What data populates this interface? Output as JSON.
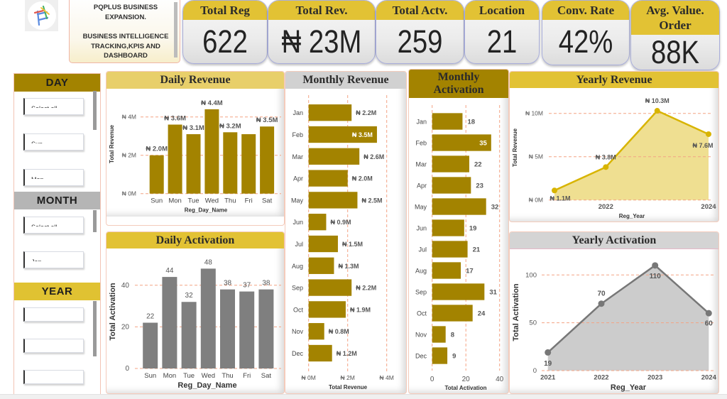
{
  "logo": {
    "icon": "pqplus-logo-icon"
  },
  "title_card": {
    "lines": [
      "PQPLUS BUSINESS",
      "EXPANSION.",
      "",
      "BUSINESS INTELLIGENCE",
      "TRACKING,KPIS AND",
      "DASHBOARD"
    ]
  },
  "kpis": [
    {
      "label": "Total Reg",
      "value": "622"
    },
    {
      "label": "Total Rev.",
      "value": "₦ 23M"
    },
    {
      "label": "Total Actv.",
      "value": "259"
    },
    {
      "label": "Location",
      "value": "21"
    },
    {
      "label": "Conv. Rate",
      "value": "42%"
    },
    {
      "label": "Avg. Value. Order",
      "value": "88K"
    }
  ],
  "slicers": {
    "day": {
      "title": "DAY",
      "items": [
        "Select all",
        "Sun",
        "Mon"
      ]
    },
    "month": {
      "title": "MONTH",
      "items": [
        "Select all",
        "Jan"
      ]
    },
    "year": {
      "title": "YEAR"
    }
  },
  "colors": {
    "accent_gold": "#E2C234",
    "light_gold": "#E8CF6A",
    "dark_gold": "#A38300",
    "header_gray": "#D1D1D1",
    "bar_gray": "#7F7F7F",
    "gridline": "#F4A383"
  },
  "chart_data": [
    {
      "id": "daily_revenue",
      "type": "bar",
      "orientation": "vertical",
      "title": "Daily Revenue",
      "categories": [
        "Sun",
        "Mon",
        "Tue",
        "Wed",
        "Thu",
        "Fri",
        "Sat"
      ],
      "values": [
        2.0,
        3.6,
        3.1,
        4.4,
        3.2,
        3.1,
        3.5
      ],
      "value_unit": "₦ millions",
      "data_labels": [
        "₦ 2.0M",
        "₦ 3.6M",
        "₦ 3.1M",
        "₦ 4.4M",
        "₦ 3.2M",
        null,
        "₦ 3.5M"
      ],
      "xlabel": "Reg_Day_Name",
      "ylabel": "Total Revenue",
      "yticks": [
        0,
        2,
        4
      ],
      "ytick_labels": [
        "₦ 0M",
        "₦ 2M",
        "₦ 4M"
      ],
      "ylim": [
        0,
        4.8
      ],
      "grid": true
    },
    {
      "id": "daily_activation",
      "type": "bar",
      "orientation": "vertical",
      "title": "Daily Activation",
      "categories": [
        "Sun",
        "Mon",
        "Tue",
        "Wed",
        "Thu",
        "Fri",
        "Sat"
      ],
      "values": [
        22,
        44,
        32,
        48,
        38,
        37,
        38
      ],
      "data_labels": [
        "22",
        "44",
        "32",
        "48",
        "38",
        "37",
        "38"
      ],
      "xlabel": "Reg_Day_Name",
      "ylabel": "Total Activation",
      "yticks": [
        0,
        20,
        40
      ],
      "ytick_labels": [
        "0",
        "20",
        "40"
      ],
      "ylim": [
        0,
        52
      ],
      "grid": true
    },
    {
      "id": "monthly_revenue",
      "type": "bar",
      "orientation": "horizontal",
      "title": "Monthly Revenue",
      "categories": [
        "Jan",
        "Feb",
        "Mar",
        "Apr",
        "May",
        "Jun",
        "Jul",
        "Aug",
        "Sep",
        "Oct",
        "Nov",
        "Dec"
      ],
      "values": [
        2.2,
        3.5,
        2.6,
        2.0,
        2.5,
        0.9,
        1.5,
        1.3,
        2.2,
        1.9,
        0.8,
        1.2
      ],
      "value_unit": "₦ millions",
      "data_labels": [
        "₦ 2.2M",
        "₦ 3.5M",
        "₦ 2.6M",
        "₦ 2.0M",
        "₦ 2.5M",
        "₦ 0.9M",
        "₦ 1.5M",
        "₦ 1.3M",
        "₦ 2.2M",
        "₦ 1.9M",
        "₦ 0.8M",
        "₦ 1.2M"
      ],
      "xlabel": "Total Revenue",
      "ylabel": "",
      "xticks": [
        0,
        2,
        4
      ],
      "xtick_labels": [
        "₦ 0M",
        "₦ 2M",
        "₦ 4M"
      ],
      "xlim": [
        0,
        4
      ],
      "grid": true
    },
    {
      "id": "monthly_activation",
      "type": "bar",
      "orientation": "horizontal",
      "title": "Monthly Activation",
      "categories": [
        "Jan",
        "Feb",
        "Mar",
        "Apr",
        "May",
        "Jun",
        "Jul",
        "Aug",
        "Sep",
        "Oct",
        "Nov",
        "Dec"
      ],
      "values": [
        18,
        35,
        22,
        23,
        32,
        19,
        21,
        17,
        31,
        24,
        8,
        9
      ],
      "data_labels": [
        "18",
        "35",
        "22",
        "23",
        "32",
        "19",
        "21",
        "17",
        "31",
        "24",
        "8",
        "9"
      ],
      "xlabel": "Total Activation",
      "ylabel": "",
      "xticks": [
        0,
        20,
        40
      ],
      "xtick_labels": [
        "0",
        "20",
        "40"
      ],
      "xlim": [
        0,
        40
      ],
      "grid": true
    },
    {
      "id": "yearly_revenue",
      "type": "area",
      "title": "Yearly Revenue",
      "categories": [
        "2021",
        "2022",
        "2023",
        "2024"
      ],
      "values": [
        1.1,
        3.8,
        10.3,
        7.6
      ],
      "value_unit": "₦ millions",
      "data_labels": [
        "₦ 1.1M",
        "₦ 3.8M",
        "₦ 10.3M",
        "₦ 7.6M"
      ],
      "xlabel": "Reg_Year",
      "ylabel": "Total Revenue",
      "xtick_labels": [
        "2022",
        "2024"
      ],
      "yticks": [
        0,
        5,
        10
      ],
      "ytick_labels": [
        "₦ 0M",
        "₦ 5M",
        "₦ 10M"
      ],
      "ylim": [
        0,
        11
      ],
      "grid": true
    },
    {
      "id": "yearly_activation",
      "type": "area",
      "title": "Yearly Activation",
      "categories": [
        "2021",
        "2022",
        "2023",
        "2024"
      ],
      "values": [
        19,
        70,
        110,
        60
      ],
      "data_labels": [
        "19",
        "70",
        "110",
        "60"
      ],
      "xlabel": "Reg_Year",
      "ylabel": "Total Activation",
      "xtick_labels": [
        "2021",
        "2022",
        "2023",
        "2024"
      ],
      "yticks": [
        0,
        50,
        100
      ],
      "ytick_labels": [
        "0",
        "50",
        "100"
      ],
      "ylim": [
        0,
        115
      ],
      "grid": true
    }
  ]
}
